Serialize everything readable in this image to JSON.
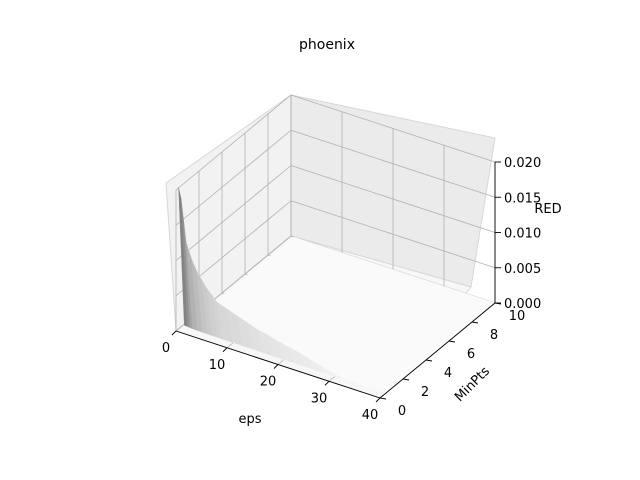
{
  "chart_data": {
    "type": "surface3d",
    "title": "phoenix",
    "xlabel": "eps",
    "ylabel": "MinPts",
    "zlabel": "RED",
    "xlim": [
      0,
      40
    ],
    "ylim": [
      0,
      10
    ],
    "zlim": [
      0,
      0.02
    ],
    "xticks": [
      0,
      10,
      20,
      30,
      40
    ],
    "yticks": [
      0,
      2,
      4,
      6,
      8,
      10
    ],
    "zticks": [
      "0.000",
      "0.005",
      "0.010",
      "0.015",
      "0.020"
    ],
    "ytick_labels": [
      "0",
      "2",
      "4",
      "6",
      "8",
      "10"
    ],
    "xtick_labels": [
      "0",
      "10",
      "20",
      "30",
      "40"
    ],
    "colormap": "grayscale (white low, black high)",
    "eps_values": [
      0.5,
      1,
      1.5,
      2,
      3,
      4,
      5,
      6,
      7,
      8,
      10,
      12,
      14,
      16,
      18,
      20,
      22,
      24,
      26,
      28,
      30,
      33,
      36,
      40
    ],
    "red_at_minpts_0": [
      0.0205,
      0.019,
      0.016,
      0.013,
      0.011,
      0.0095,
      0.0085,
      0.0075,
      0.0068,
      0.006,
      0.0055,
      0.005,
      0.0045,
      0.004,
      0.0037,
      0.0033,
      0.003,
      0.0027,
      0.0023,
      0.0019,
      0.0015,
      0.001,
      0.0006,
      0.0003
    ],
    "note": "RED is near 0.000 for MinPts above 0 across all eps"
  }
}
